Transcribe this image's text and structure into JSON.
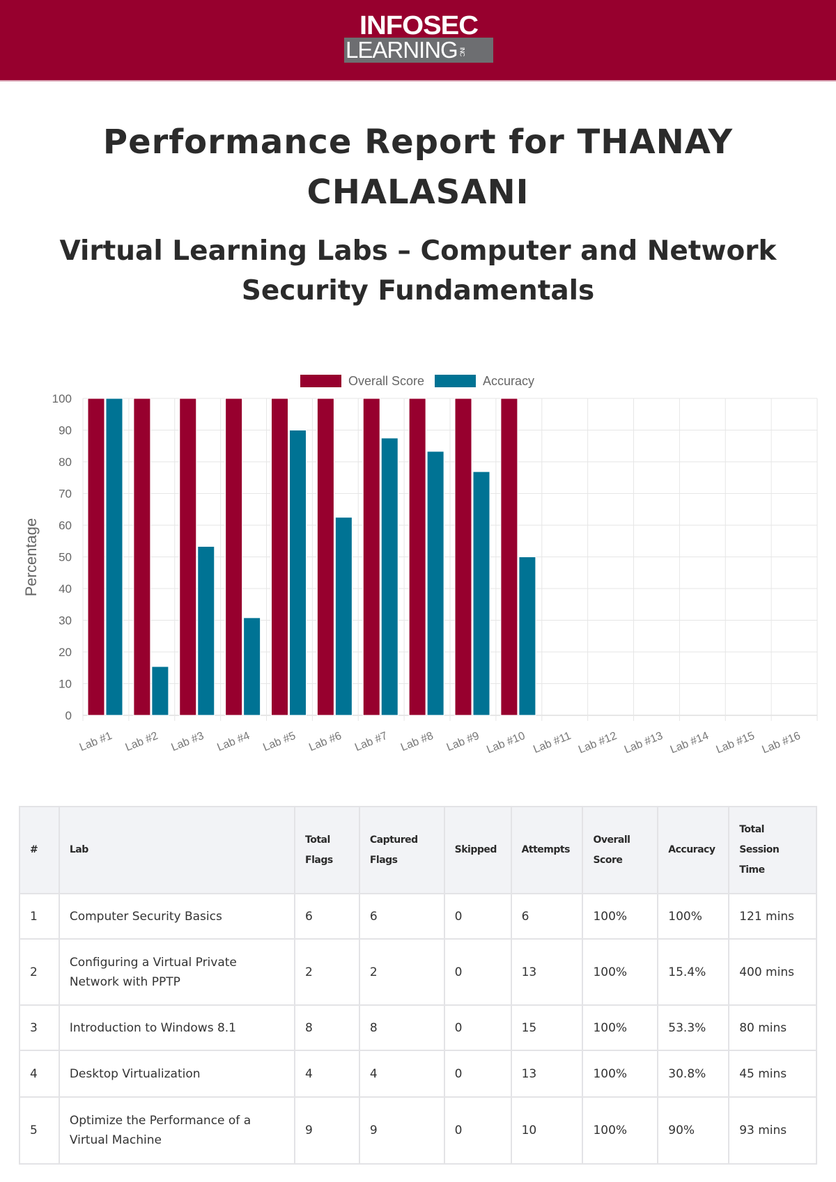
{
  "logo": {
    "line1": "INFOSEC",
    "line2": "LEARNING",
    "suffix": "INC"
  },
  "title": "Performance Report for THANAY CHALASANI",
  "subtitle": "Virtual Learning Labs – Computer and Network Security Fundamentals",
  "colors": {
    "brand": "#97002e",
    "overall": "#97002e",
    "accuracy": "#007394"
  },
  "chart_data": {
    "type": "bar",
    "categories": [
      "Lab #1",
      "Lab #2",
      "Lab #3",
      "Lab #4",
      "Lab #5",
      "Lab #6",
      "Lab #7",
      "Lab #8",
      "Lab #9",
      "Lab #10",
      "Lab #11",
      "Lab #12",
      "Lab #13",
      "Lab #14",
      "Lab #15",
      "Lab #16"
    ],
    "series": [
      {
        "name": "Overall Score",
        "values": [
          100,
          100,
          100,
          100,
          100,
          100,
          100,
          100,
          100,
          100,
          null,
          null,
          null,
          null,
          null,
          null
        ]
      },
      {
        "name": "Accuracy",
        "values": [
          100,
          15.4,
          53.3,
          30.8,
          90,
          62.5,
          87.5,
          83.3,
          76.9,
          50,
          null,
          null,
          null,
          null,
          null,
          null
        ]
      }
    ],
    "ylabel": "Percentage",
    "ylim": [
      0,
      100
    ],
    "yticks": [
      0,
      10,
      20,
      30,
      40,
      50,
      60,
      70,
      80,
      90,
      100
    ],
    "grid": true,
    "legend": "top"
  },
  "table": {
    "headers": [
      "#",
      "Lab",
      "Total Flags",
      "Captured Flags",
      "Skipped",
      "Attempts",
      "Overall Score",
      "Accuracy",
      "Total Session Time"
    ],
    "rows": [
      [
        "1",
        "Computer Security Basics",
        "6",
        "6",
        "0",
        "6",
        "100%",
        "100%",
        "121 mins"
      ],
      [
        "2",
        "Configuring a Virtual Private Network with PPTP",
        "2",
        "2",
        "0",
        "13",
        "100%",
        "15.4%",
        "400 mins"
      ],
      [
        "3",
        "Introduction to Windows 8.1",
        "8",
        "8",
        "0",
        "15",
        "100%",
        "53.3%",
        "80 mins"
      ],
      [
        "4",
        "Desktop Virtualization",
        "4",
        "4",
        "0",
        "13",
        "100%",
        "30.8%",
        "45 mins"
      ],
      [
        "5",
        "Optimize the Performance of a Virtual Machine",
        "9",
        "9",
        "0",
        "10",
        "100%",
        "90%",
        "93 mins"
      ]
    ]
  }
}
